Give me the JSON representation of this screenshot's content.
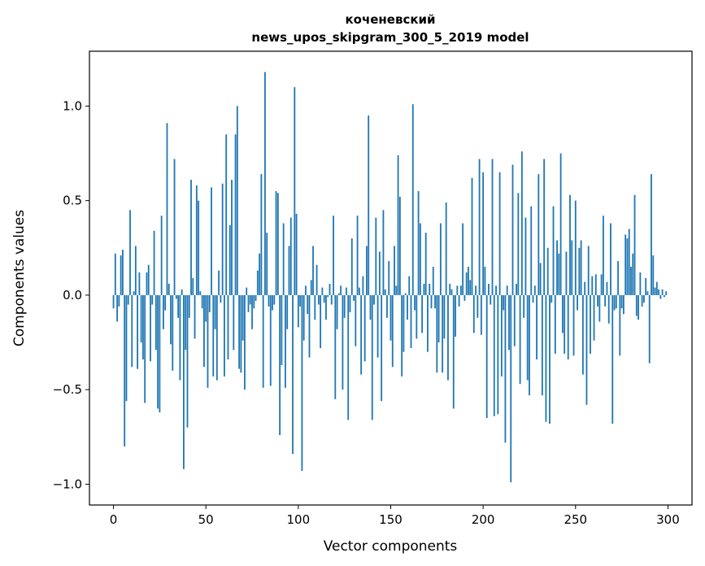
{
  "chart_data": {
    "type": "bar",
    "title": "коченевский",
    "subtitle": "news_upos_skipgram_300_5_2019 model",
    "xlabel": "Vector components",
    "ylabel": "Components values",
    "xlim": [
      -13,
      313
    ],
    "ylim": [
      -1.11,
      1.29
    ],
    "xticks": [
      0,
      50,
      100,
      150,
      200,
      250,
      300
    ],
    "xtick_labels": [
      "0",
      "50",
      "100",
      "150",
      "200",
      "250",
      "300"
    ],
    "yticks": [
      -1.0,
      -0.5,
      0.0,
      0.5,
      1.0
    ],
    "ytick_labels": [
      "−1.0",
      "−0.5",
      "0.0",
      "0.5",
      "1.0"
    ],
    "bar_color": "#1f77b4",
    "grid": false,
    "x": "0..299 (one bar per vector component index)",
    "values": [
      -0.07,
      0.22,
      -0.14,
      -0.06,
      0.21,
      0.24,
      -0.8,
      -0.56,
      -0.05,
      0.45,
      -0.38,
      0.02,
      0.26,
      -0.39,
      0.12,
      -0.25,
      -0.34,
      -0.57,
      0.12,
      0.16,
      -0.35,
      -0.05,
      0.34,
      -0.29,
      -0.6,
      -0.62,
      0.42,
      -0.18,
      -0.08,
      0.91,
      0.06,
      -0.26,
      -0.4,
      0.72,
      -0.02,
      -0.12,
      -0.45,
      0.03,
      -0.92,
      -0.29,
      -0.7,
      -0.12,
      0.61,
      0.09,
      -0.23,
      0.58,
      0.5,
      0.02,
      -0.07,
      -0.38,
      -0.14,
      -0.49,
      -0.09,
      0.57,
      -0.43,
      -0.18,
      -0.45,
      0.13,
      -0.04,
      0.59,
      -0.43,
      0.85,
      -0.34,
      0.37,
      0.61,
      -0.29,
      0.85,
      1.0,
      -0.39,
      -0.41,
      -0.24,
      -0.5,
      0.04,
      -0.09,
      -0.05,
      -0.18,
      -0.07,
      -0.03,
      0.13,
      0.22,
      0.64,
      -0.49,
      1.18,
      0.33,
      -0.06,
      -0.48,
      -0.08,
      -0.05,
      0.55,
      0.54,
      -0.74,
      -0.37,
      0.38,
      -0.49,
      -0.18,
      0.26,
      0.41,
      -0.84,
      1.1,
      0.43,
      -0.17,
      -0.06,
      -0.93,
      -0.24,
      0.05,
      -0.1,
      -0.33,
      0.08,
      0.26,
      -0.13,
      0.16,
      -0.05,
      -0.28,
      0.04,
      -0.04,
      -0.13,
      -0.01,
      0.06,
      -0.05,
      0.42,
      -0.55,
      -0.18,
      0.01,
      0.05,
      -0.5,
      -0.12,
      0.04,
      -0.66,
      -0.09,
      0.3,
      -0.03,
      -0.27,
      0.42,
      0.04,
      -0.42,
      0.1,
      -0.35,
      0.26,
      0.95,
      -0.13,
      -0.66,
      -0.05,
      0.41,
      -0.33,
      0.23,
      -0.56,
      0.45,
      0.03,
      -0.12,
      0.18,
      -0.24,
      -0.38,
      0.26,
      0.05,
      0.74,
      0.52,
      -0.43,
      -0.3,
      0.01,
      -0.13,
      0.1,
      -0.28,
      1.01,
      -0.08,
      -0.23,
      0.55,
      0.38,
      -0.2,
      0.06,
      0.33,
      -0.3,
      0.06,
      -0.07,
      0.15,
      -0.07,
      -0.41,
      -0.25,
      0.38,
      -0.41,
      -0.23,
      0.49,
      -0.45,
      0.06,
      0.03,
      -0.6,
      -0.22,
      0.05,
      -0.06,
      0.05,
      0.38,
      -0.03,
      0.12,
      0.15,
      0.08,
      0.62,
      -0.2,
      0.05,
      -0.12,
      0.72,
      -0.21,
      0.65,
      0.15,
      -0.65,
      0.06,
      -0.05,
      0.72,
      -0.64,
      0.05,
      -0.63,
      0.65,
      -0.43,
      -0.08,
      -0.78,
      0.05,
      -0.29,
      -0.99,
      0.69,
      -0.27,
      0.06,
      0.54,
      -0.47,
      0.76,
      -0.12,
      0.41,
      -0.45,
      -0.53,
      0.47,
      -0.04,
      0.05,
      -0.34,
      0.64,
      0.17,
      -0.53,
      0.72,
      -0.67,
      0.25,
      -0.68,
      -0.04,
      0.47,
      -0.31,
      0.29,
      0.22,
      0.75,
      -0.2,
      -0.31,
      0.23,
      -0.34,
      0.53,
      0.29,
      -0.32,
      0.5,
      -0.08,
      0.25,
      0.29,
      -0.42,
      0.07,
      -0.58,
      0.26,
      -0.31,
      0.1,
      -0.24,
      0.11,
      -0.06,
      -0.14,
      0.11,
      0.42,
      -0.06,
      0.07,
      -0.15,
      0.38,
      -0.68,
      -0.08,
      -0.07,
      0.18,
      -0.32,
      -0.07,
      -0.1,
      0.32,
      0.3,
      0.35,
      0.15,
      0.22,
      0.53,
      -0.11,
      -0.13,
      0.12,
      -0.06,
      -0.04,
      0.09,
      0.02,
      -0.36,
      0.64,
      0.21,
      0.04,
      0.07,
      0.03,
      -0.02,
      0.03,
      -0.01,
      0.02
    ]
  }
}
